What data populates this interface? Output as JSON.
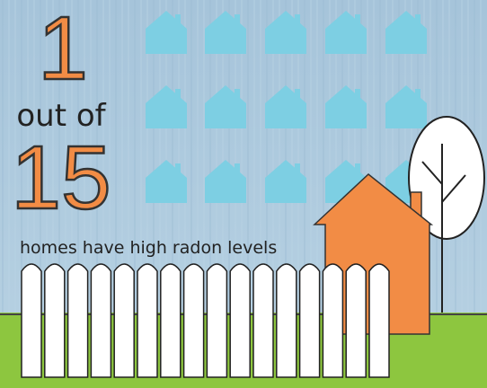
{
  "headline": {
    "number": "1",
    "middle": "out of",
    "total": "15",
    "caption": "homes have high radon levels"
  }
}
